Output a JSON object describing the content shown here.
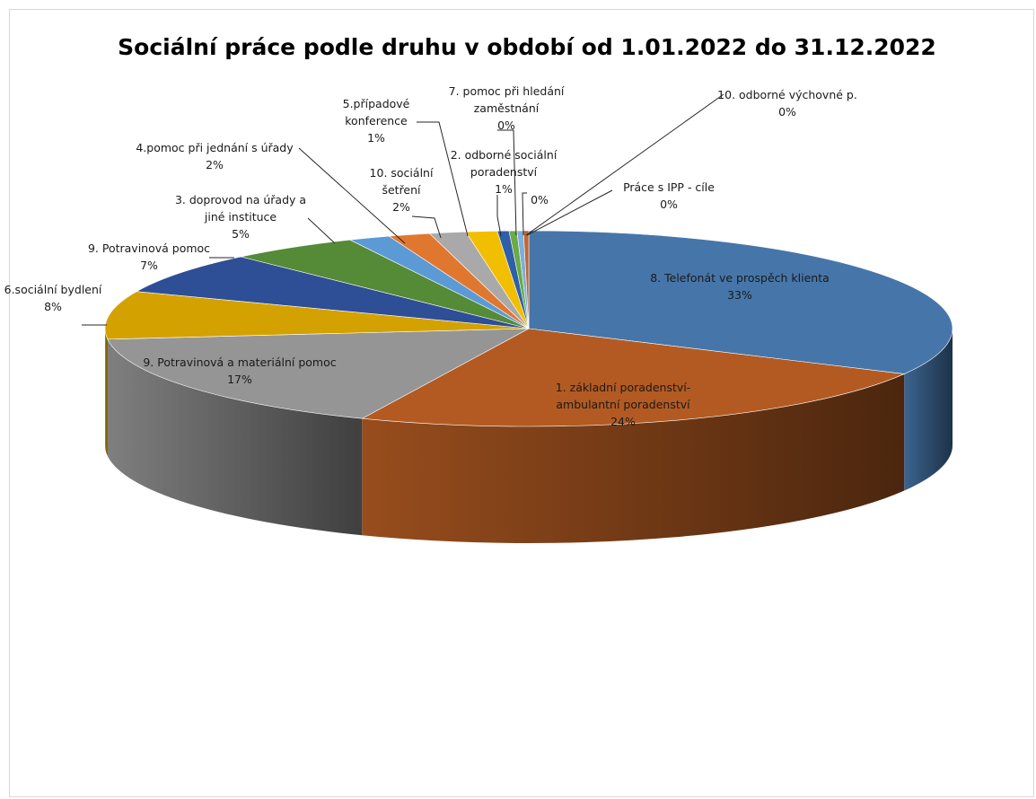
{
  "chart_data": {
    "type": "pie",
    "style": "3d",
    "title": "Sociální práce podle druhu v období od 1.01.2022 do 31.12.2022",
    "legend": "none",
    "slices": [
      {
        "label": [
          "8. Telefonát ve prospěch klienta"
        ],
        "pct_text": "33%",
        "value": 33,
        "color": "#4676A9"
      },
      {
        "label": [
          "1. základní poradenství-",
          "ambulantní poradenství"
        ],
        "pct_text": "24%",
        "value": 24,
        "color": "#B35A22"
      },
      {
        "label": [
          "9. Potravinová a materiální pomoc"
        ],
        "pct_text": "17%",
        "value": 17,
        "color": "#959595"
      },
      {
        "label": [
          "6.sociální bydlení"
        ],
        "pct_text": "8%",
        "value": 8,
        "color": "#D3A200"
      },
      {
        "label": [
          "9. Potravinová pomoc"
        ],
        "pct_text": "7%",
        "value": 7,
        "color": "#2E4E96"
      },
      {
        "label": [
          "3. doprovod na úřady a",
          "jiné instituce"
        ],
        "pct_text": "5%",
        "value": 5,
        "color": "#558A36"
      },
      {
        "label": [
          "4.pomoc při jednání s úřady"
        ],
        "pct_text": "2%",
        "value": 1.6,
        "color": "#5B9AD5"
      },
      {
        "label": [
          "10. sociální",
          "šetření"
        ],
        "pct_text": "2%",
        "value": 1.6,
        "color": "#E0772F"
      },
      {
        "label": [
          "5.případové",
          "konference"
        ],
        "pct_text": "1%",
        "value": 1.4,
        "color": "#A9A9A9"
      },
      {
        "label": [
          "2. odborné sociální",
          "poradenství"
        ],
        "pct_text": "1%",
        "value": 1.2,
        "color": "#F2BE00"
      },
      {
        "label": [
          "7. pomoc při hledání",
          "zaměstnání"
        ],
        "pct_text": "0%",
        "value": 0.45,
        "color": "#2F5FA8"
      },
      {
        "label": [],
        "pct_text": "0%",
        "value": 0.3,
        "color": "#6BAA45"
      },
      {
        "label": [
          "10. odborné výchovné p."
        ],
        "pct_text": "0%",
        "value": 0.25,
        "color": "#7EAEDD"
      },
      {
        "label": [
          "Práce s IPP - cíle"
        ],
        "pct_text": "0%",
        "value": 0.2,
        "color": "#C0662E"
      }
    ]
  }
}
